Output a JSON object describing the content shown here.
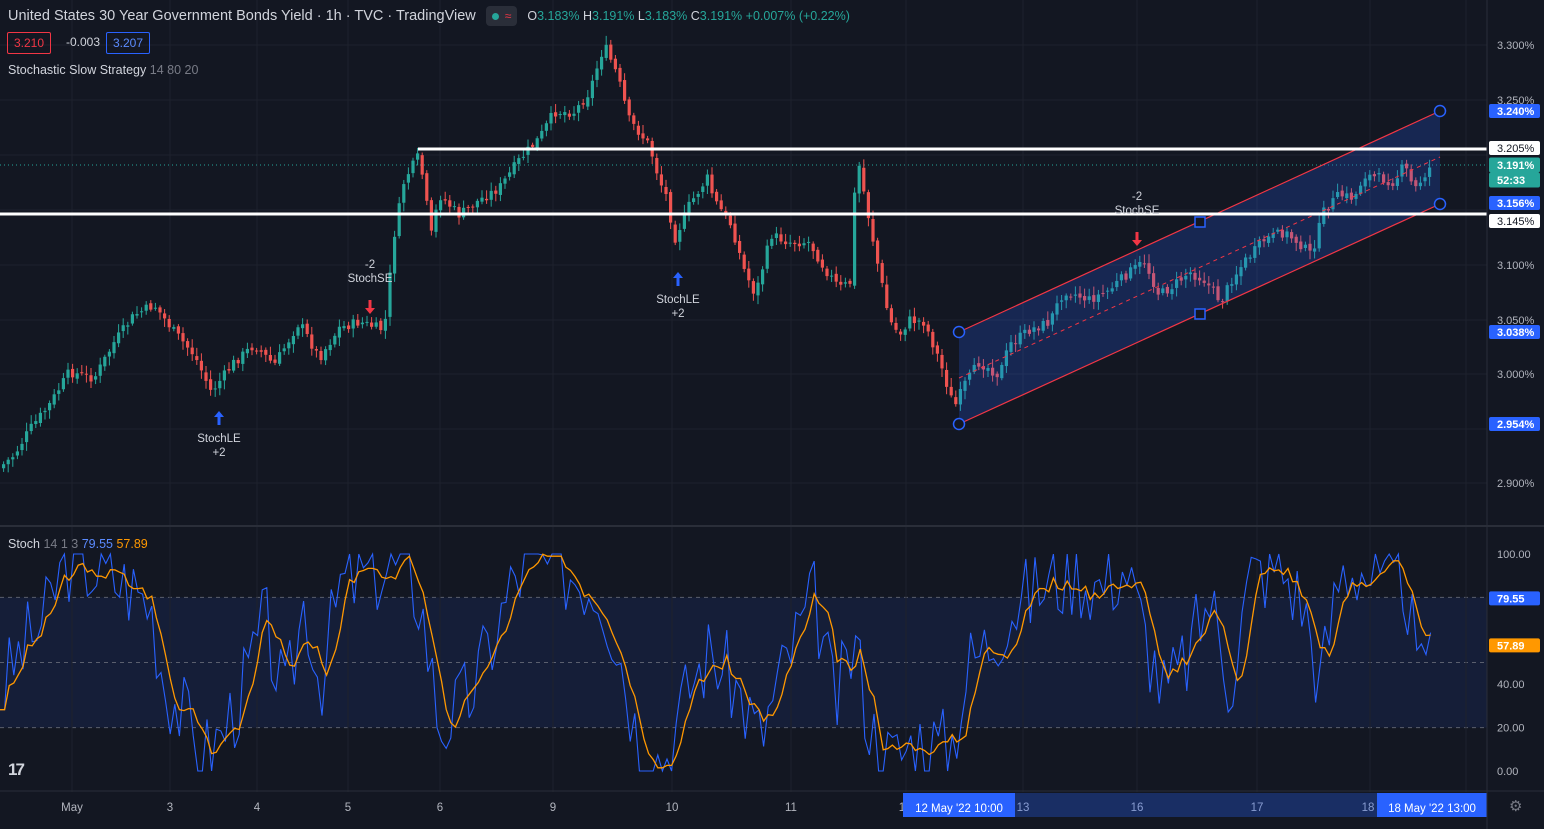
{
  "header": {
    "title": "United States 30 Year Government Bonds Yield · 1h · TVC · TradingView",
    "ohlc": {
      "o_label": "O",
      "o": "3.183%",
      "h_label": "H",
      "h": "3.191%",
      "l_label": "L",
      "l": "3.183%",
      "c_label": "C",
      "c": "3.191%",
      "change": "+0.007% (+0.22%)"
    },
    "sell_price": "3.210",
    "spread": "-0.003",
    "buy_price": "3.207"
  },
  "strategy": {
    "name": "Stochastic Slow Strategy",
    "params": "14 80 20"
  },
  "stoch_indicator": {
    "name": "Stoch",
    "params": "14 1 3",
    "k_value": "79.55",
    "d_value": "57.89"
  },
  "price_axis": {
    "ticks": [
      "3.300%",
      "3.250%",
      "3.100%",
      "3.050%",
      "3.000%",
      "2.900%"
    ],
    "badges": [
      {
        "text": "3.240%",
        "kind": "blue"
      },
      {
        "text": "3.205%",
        "kind": "white"
      },
      {
        "text": "3.191%",
        "kind": "green"
      },
      {
        "text": "52:33",
        "kind": "green"
      },
      {
        "text": "3.156%",
        "kind": "blue"
      },
      {
        "text": "3.145%",
        "kind": "white"
      },
      {
        "text": "3.038%",
        "kind": "blue"
      },
      {
        "text": "2.954%",
        "kind": "blue"
      }
    ]
  },
  "stoch_axis": {
    "ticks": [
      "100.00",
      "40.00",
      "20.00",
      "0.00"
    ],
    "badges": [
      {
        "text": "79.55",
        "kind": "blue"
      },
      {
        "text": "57.89",
        "kind": "orange"
      }
    ]
  },
  "time_axis": {
    "labels": [
      "May",
      "3",
      "4",
      "5",
      "6",
      "9",
      "10",
      "11",
      "1",
      "13",
      "16",
      "17",
      "18"
    ],
    "range_start": "12 May '22   10:00",
    "range_end": "18 May '22   13:00",
    "tail": "13:00"
  },
  "signals": [
    {
      "name": "StochLE",
      "qty": "+2",
      "direction": "long"
    },
    {
      "name": "StochSE",
      "qty": "-2",
      "direction": "short"
    },
    {
      "name": "StochLE",
      "qty": "+2",
      "direction": "long"
    },
    {
      "name": "StochSE",
      "qty": "-2",
      "direction": "short"
    }
  ],
  "colors": {
    "background": "#131722",
    "up": "#26a69a",
    "down": "#ef5350",
    "channel": "#f23645",
    "accent": "#2962ff",
    "stoch_k": "#2962ff",
    "stoch_d": "#ff9800"
  },
  "drawings": {
    "horizontal_lines": [
      "3.205%",
      "3.145%"
    ],
    "channel": "parallel channel"
  }
}
